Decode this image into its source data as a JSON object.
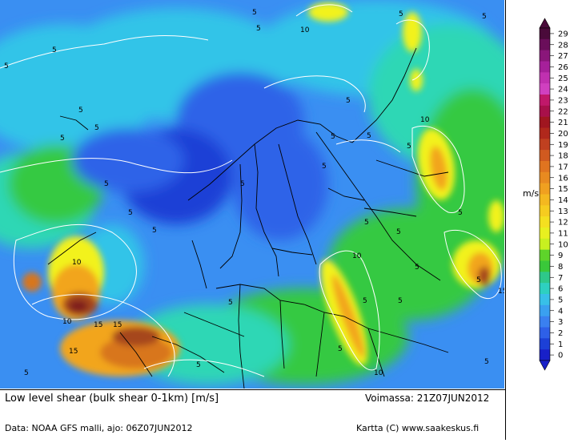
{
  "map": {
    "contour_labels": [
      "5",
      "10",
      "15"
    ],
    "colors": {
      "deep_blue": "#1c3fd6",
      "blue": "#2e63e8",
      "light_blue": "#3a8ff2",
      "cyan": "#31c4e8",
      "teal": "#2ed7b5",
      "green": "#35c943",
      "lime": "#7ddc2b",
      "yellow": "#f2f21e",
      "orange": "#f2a51e",
      "dark_orange": "#d8761e",
      "brown": "#a6461e",
      "dark_red": "#7e1e1e",
      "contour": "#ffffff",
      "border": "#000000"
    }
  },
  "legend": {
    "unit": "m/s",
    "ticks": [
      "29",
      "28",
      "27",
      "26",
      "25",
      "24",
      "23",
      "22",
      "21",
      "20",
      "19",
      "18",
      "17",
      "16",
      "15",
      "14",
      "13",
      "12",
      "11",
      "10",
      "9",
      "8",
      "7",
      "6",
      "5",
      "4",
      "3",
      "2",
      "1",
      "0"
    ],
    "colors": [
      "#4a0a3a",
      "#6a0e5a",
      "#8a167a",
      "#a6209a",
      "#c030b0",
      "#d040c0",
      "#c0186a",
      "#a8104a",
      "#a01620",
      "#b0281c",
      "#c04020",
      "#d05a20",
      "#e07420",
      "#e88a20",
      "#f0a020",
      "#f4b820",
      "#f6cc20",
      "#f4e020",
      "#e8f020",
      "#c8f020",
      "#5ed42a",
      "#3ac83a",
      "#2ec88a",
      "#2ed0c0",
      "#38c0e8",
      "#3aa0f0",
      "#3a80f0",
      "#2e60e8",
      "#1c40d6",
      "#1820c8"
    ]
  },
  "caption": {
    "title": "Low level shear (bulk shear 0-1km) [m/s]",
    "valid": "Voimassa: 21Z07JUN2012",
    "data_source": "Data: NOAA GFS malli, ajo: 06Z07JUN2012",
    "credit": "Kartta (C) www.saakeskus.fi"
  }
}
